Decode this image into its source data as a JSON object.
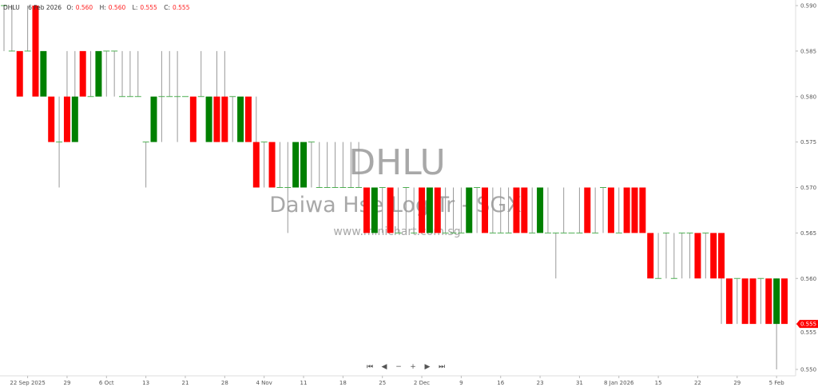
{
  "header": {
    "symbol": "DHLU",
    "date": "6 Feb 2026",
    "o_label": "O:",
    "o": "0.560",
    "h_label": "H:",
    "h": "0.560",
    "l_label": "L:",
    "l": "0.555",
    "c_label": "C:",
    "c": "0.555"
  },
  "watermark": {
    "symbol": "DHLU",
    "name": "Daiwa Hse Log Tr - SGX",
    "url": "www.minichart.com.sg"
  },
  "nav": {
    "first": "⏮",
    "prev": "◀",
    "zoom_out": "−",
    "zoom_in": "+",
    "next": "▶",
    "last": "⏭"
  },
  "chart_data": {
    "type": "candlestick",
    "title": "",
    "ylim": [
      0.55,
      0.59
    ],
    "y_ticks": [
      "0.590",
      "0.585",
      "0.580",
      "0.575",
      "0.570",
      "0.565",
      "0.560",
      "0.555",
      "0.550"
    ],
    "last_price": "0.555",
    "colors": {
      "up": "#008000",
      "down": "#ff0000",
      "wick": "#999999",
      "flat": "#4caf50",
      "last_tag": "#ff0000"
    },
    "x_ticks": [
      {
        "label": "22 Sep 2025",
        "date": "2025-09-22"
      },
      {
        "label": "29",
        "date": "2025-09-29"
      },
      {
        "label": "6 Oct",
        "date": "2025-10-06"
      },
      {
        "label": "13",
        "date": "2025-10-13"
      },
      {
        "label": "21",
        "date": "2025-10-21"
      },
      {
        "label": "28",
        "date": "2025-10-28"
      },
      {
        "label": "4 Nov",
        "date": "2025-11-04"
      },
      {
        "label": "11",
        "date": "2025-11-11"
      },
      {
        "label": "18",
        "date": "2025-11-18"
      },
      {
        "label": "25",
        "date": "2025-11-25"
      },
      {
        "label": "2 Dec",
        "date": "2025-12-02"
      },
      {
        "label": "9",
        "date": "2025-12-09"
      },
      {
        "label": "16",
        "date": "2025-12-16"
      },
      {
        "label": "23",
        "date": "2025-12-23"
      },
      {
        "label": "31",
        "date": "2025-12-31"
      },
      {
        "label": "8 Jan 2026",
        "date": "2026-01-08"
      },
      {
        "label": "15",
        "date": "2026-01-15"
      },
      {
        "label": "22",
        "date": "2026-01-22"
      },
      {
        "label": "29",
        "date": "2026-01-29"
      },
      {
        "label": "5 Feb",
        "date": "2026-02-05"
      }
    ],
    "candles": [
      [
        "2025-09-17",
        0.59,
        0.59,
        0.585,
        0.59
      ],
      [
        "2025-09-18",
        0.585,
        0.59,
        0.585,
        0.585
      ],
      [
        "2025-09-19",
        0.585,
        0.585,
        0.58,
        0.58
      ],
      [
        "2025-09-22",
        0.585,
        0.59,
        0.585,
        0.585
      ],
      [
        "2025-09-23",
        0.59,
        0.59,
        0.58,
        0.58
      ],
      [
        "2025-09-24",
        0.58,
        0.585,
        0.58,
        0.585
      ],
      [
        "2025-09-25",
        0.58,
        0.58,
        0.575,
        0.575
      ],
      [
        "2025-09-26",
        0.575,
        0.58,
        0.57,
        0.575
      ],
      [
        "2025-09-29",
        0.58,
        0.585,
        0.575,
        0.575
      ],
      [
        "2025-09-30",
        0.575,
        0.585,
        0.575,
        0.58
      ],
      [
        "2025-10-01",
        0.585,
        0.585,
        0.58,
        0.58
      ],
      [
        "2025-10-02",
        0.58,
        0.585,
        0.58,
        0.58
      ],
      [
        "2025-10-03",
        0.58,
        0.585,
        0.58,
        0.585
      ],
      [
        "2025-10-06",
        0.585,
        0.585,
        0.58,
        0.585
      ],
      [
        "2025-10-07",
        0.585,
        0.585,
        0.58,
        0.585
      ],
      [
        "2025-10-08",
        0.58,
        0.585,
        0.58,
        0.58
      ],
      [
        "2025-10-09",
        0.58,
        0.585,
        0.58,
        0.58
      ],
      [
        "2025-10-10",
        0.58,
        0.585,
        0.58,
        0.58
      ],
      [
        "2025-10-13",
        0.575,
        0.575,
        0.57,
        0.575
      ],
      [
        "2025-10-14",
        0.575,
        0.58,
        0.575,
        0.58
      ],
      [
        "2025-10-15",
        0.58,
        0.585,
        0.575,
        0.58
      ],
      [
        "2025-10-16",
        0.58,
        0.585,
        0.58,
        0.58
      ],
      [
        "2025-10-17",
        0.58,
        0.585,
        0.575,
        0.58
      ],
      [
        "2025-10-21",
        0.58,
        0.58,
        0.58,
        0.58
      ],
      [
        "2025-10-22",
        0.58,
        0.58,
        0.575,
        0.575
      ],
      [
        "2025-10-23",
        0.58,
        0.585,
        0.58,
        0.58
      ],
      [
        "2025-10-24",
        0.575,
        0.58,
        0.575,
        0.58
      ],
      [
        "2025-10-27",
        0.58,
        0.585,
        0.575,
        0.575
      ],
      [
        "2025-10-28",
        0.58,
        0.585,
        0.575,
        0.575
      ],
      [
        "2025-10-29",
        0.58,
        0.58,
        0.575,
        0.58
      ],
      [
        "2025-10-30",
        0.575,
        0.58,
        0.575,
        0.58
      ],
      [
        "2025-10-31",
        0.58,
        0.58,
        0.575,
        0.575
      ],
      [
        "2025-11-03",
        0.575,
        0.58,
        0.57,
        0.57
      ],
      [
        "2025-11-04",
        0.575,
        0.575,
        0.57,
        0.575
      ],
      [
        "2025-11-05",
        0.575,
        0.575,
        0.57,
        0.57
      ],
      [
        "2025-11-06",
        0.57,
        0.575,
        0.57,
        0.57
      ],
      [
        "2025-11-07",
        0.57,
        0.575,
        0.565,
        0.57
      ],
      [
        "2025-11-10",
        0.57,
        0.575,
        0.57,
        0.575
      ],
      [
        "2025-11-11",
        0.57,
        0.575,
        0.57,
        0.575
      ],
      [
        "2025-11-12",
        0.575,
        0.575,
        0.57,
        0.575
      ],
      [
        "2025-11-13",
        0.57,
        0.575,
        0.57,
        0.57
      ],
      [
        "2025-11-14",
        0.57,
        0.575,
        0.57,
        0.57
      ],
      [
        "2025-11-17",
        0.57,
        0.575,
        0.57,
        0.57
      ],
      [
        "2025-11-18",
        0.57,
        0.575,
        0.57,
        0.57
      ],
      [
        "2025-11-19",
        0.57,
        0.575,
        0.57,
        0.57
      ],
      [
        "2025-11-20",
        0.57,
        0.575,
        0.57,
        0.57
      ],
      [
        "2025-11-21",
        0.57,
        0.57,
        0.565,
        0.565
      ],
      [
        "2025-11-24",
        0.565,
        0.57,
        0.565,
        0.57
      ],
      [
        "2025-11-25",
        0.57,
        0.57,
        0.565,
        0.57
      ],
      [
        "2025-11-26",
        0.57,
        0.57,
        0.565,
        0.565
      ],
      [
        "2025-11-27",
        0.565,
        0.57,
        0.565,
        0.565
      ],
      [
        "2025-11-28",
        0.57,
        0.57,
        0.565,
        0.57
      ],
      [
        "2025-12-01",
        0.565,
        0.57,
        0.565,
        0.565
      ],
      [
        "2025-12-02",
        0.57,
        0.57,
        0.565,
        0.565
      ],
      [
        "2025-12-03",
        0.565,
        0.57,
        0.565,
        0.57
      ],
      [
        "2025-12-04",
        0.57,
        0.57,
        0.565,
        0.565
      ],
      [
        "2025-12-05",
        0.565,
        0.57,
        0.565,
        0.565
      ],
      [
        "2025-12-08",
        0.565,
        0.57,
        0.565,
        0.565
      ],
      [
        "2025-12-09",
        0.565,
        0.57,
        0.565,
        0.565
      ],
      [
        "2025-12-10",
        0.565,
        0.57,
        0.565,
        0.57
      ],
      [
        "2025-12-11",
        0.57,
        0.57,
        0.565,
        0.57
      ],
      [
        "2025-12-12",
        0.57,
        0.57,
        0.565,
        0.565
      ],
      [
        "2025-12-15",
        0.565,
        0.57,
        0.565,
        0.565
      ],
      [
        "2025-12-16",
        0.565,
        0.57,
        0.565,
        0.565
      ],
      [
        "2025-12-17",
        0.565,
        0.57,
        0.565,
        0.565
      ],
      [
        "2025-12-18",
        0.57,
        0.57,
        0.565,
        0.565
      ],
      [
        "2025-12-19",
        0.57,
        0.57,
        0.565,
        0.565
      ],
      [
        "2025-12-22",
        0.565,
        0.57,
        0.565,
        0.565
      ],
      [
        "2025-12-23",
        0.565,
        0.57,
        0.565,
        0.57
      ],
      [
        "2025-12-24",
        0.565,
        0.57,
        0.565,
        0.565
      ],
      [
        "2025-12-26",
        0.565,
        0.565,
        0.56,
        0.565
      ],
      [
        "2025-12-29",
        0.565,
        0.57,
        0.565,
        0.565
      ],
      [
        "2025-12-30",
        0.565,
        0.565,
        0.565,
        0.565
      ],
      [
        "2025-12-31",
        0.565,
        0.57,
        0.565,
        0.565
      ],
      [
        "2026-01-02",
        0.57,
        0.57,
        0.565,
        0.565
      ],
      [
        "2026-01-05",
        0.565,
        0.57,
        0.565,
        0.565
      ],
      [
        "2026-01-06",
        0.57,
        0.57,
        0.565,
        0.57
      ],
      [
        "2026-01-07",
        0.57,
        0.57,
        0.565,
        0.565
      ],
      [
        "2026-01-08",
        0.565,
        0.57,
        0.565,
        0.565
      ],
      [
        "2026-01-09",
        0.57,
        0.57,
        0.565,
        0.565
      ],
      [
        "2026-01-12",
        0.57,
        0.57,
        0.565,
        0.565
      ],
      [
        "2026-01-13",
        0.57,
        0.57,
        0.565,
        0.565
      ],
      [
        "2026-01-14",
        0.565,
        0.565,
        0.56,
        0.56
      ],
      [
        "2026-01-15",
        0.56,
        0.565,
        0.56,
        0.56
      ],
      [
        "2026-01-16",
        0.565,
        0.565,
        0.56,
        0.565
      ],
      [
        "2026-01-19",
        0.56,
        0.565,
        0.56,
        0.56
      ],
      [
        "2026-01-20",
        0.565,
        0.565,
        0.56,
        0.565
      ],
      [
        "2026-01-21",
        0.565,
        0.565,
        0.56,
        0.565
      ],
      [
        "2026-01-22",
        0.565,
        0.565,
        0.56,
        0.56
      ],
      [
        "2026-01-23",
        0.565,
        0.565,
        0.56,
        0.565
      ],
      [
        "2026-01-26",
        0.565,
        0.565,
        0.56,
        0.56
      ],
      [
        "2026-01-27",
        0.565,
        0.565,
        0.555,
        0.56
      ],
      [
        "2026-01-28",
        0.56,
        0.56,
        0.555,
        0.555
      ],
      [
        "2026-01-29",
        0.56,
        0.56,
        0.555,
        0.56
      ],
      [
        "2026-01-30",
        0.56,
        0.56,
        0.555,
        0.555
      ],
      [
        "2026-02-02",
        0.56,
        0.56,
        0.555,
        0.555
      ],
      [
        "2026-02-03",
        0.56,
        0.56,
        0.555,
        0.56
      ],
      [
        "2026-02-04",
        0.56,
        0.56,
        0.555,
        0.555
      ],
      [
        "2026-02-05",
        0.555,
        0.56,
        0.55,
        0.56
      ],
      [
        "2026-02-06",
        0.56,
        0.56,
        0.555,
        0.555
      ]
    ]
  }
}
